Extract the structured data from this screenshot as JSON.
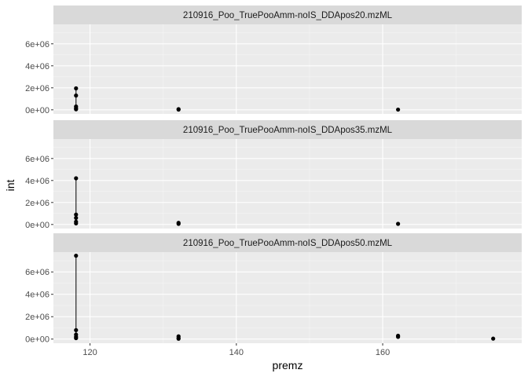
{
  "chart_data": {
    "type": "scatter",
    "xlabel": "premz",
    "ylabel": "int",
    "xlim": [
      115,
      179
    ],
    "ylim": [
      -370000,
      7770000
    ],
    "x_ticks": [
      120,
      140,
      160
    ],
    "x_minor_ticks": [
      130,
      150,
      170
    ],
    "y_ticks": [
      0,
      2000000,
      4000000,
      6000000
    ],
    "y_tick_labels": [
      "0e+00",
      "2e+06",
      "4e+06",
      "6e+06"
    ],
    "y_minor_ticks": [
      1000000,
      3000000,
      5000000,
      7000000
    ],
    "grid": true,
    "facets": [
      {
        "name": "210916_Poo_TruePooAmm-noIS_DDApos20.mzML",
        "points": [
          {
            "x": 118.09,
            "y": 1950000
          },
          {
            "x": 118.09,
            "y": 1300000
          },
          {
            "x": 118.09,
            "y": 300000
          },
          {
            "x": 118.09,
            "y": 150000
          },
          {
            "x": 118.09,
            "y": 50000
          },
          {
            "x": 132.1,
            "y": 60000
          },
          {
            "x": 132.1,
            "y": 20000
          },
          {
            "x": 162.1,
            "y": 20000
          }
        ],
        "segments": [
          {
            "x": 118.09,
            "y0": 50000,
            "y1": 1950000
          }
        ]
      },
      {
        "name": "210916_Poo_TruePooAmm-noIS_DDApos35.mzML",
        "points": [
          {
            "x": 118.09,
            "y": 4200000
          },
          {
            "x": 118.09,
            "y": 900000
          },
          {
            "x": 118.09,
            "y": 600000
          },
          {
            "x": 118.09,
            "y": 250000
          },
          {
            "x": 118.09,
            "y": 100000
          },
          {
            "x": 132.1,
            "y": 150000
          },
          {
            "x": 132.1,
            "y": 60000
          },
          {
            "x": 162.1,
            "y": 60000
          }
        ],
        "segments": [
          {
            "x": 118.09,
            "y0": 100000,
            "y1": 4200000
          }
        ]
      },
      {
        "name": "210916_Poo_TruePooAmm-noIS_DDApos50.mzML",
        "points": [
          {
            "x": 118.09,
            "y": 7450000
          },
          {
            "x": 118.09,
            "y": 800000
          },
          {
            "x": 118.09,
            "y": 400000
          },
          {
            "x": 118.09,
            "y": 200000
          },
          {
            "x": 118.09,
            "y": 80000
          },
          {
            "x": 132.1,
            "y": 250000
          },
          {
            "x": 132.1,
            "y": 100000
          },
          {
            "x": 132.1,
            "y": 30000
          },
          {
            "x": 162.1,
            "y": 300000
          },
          {
            "x": 162.1,
            "y": 200000
          },
          {
            "x": 175.1,
            "y": 40000
          }
        ],
        "segments": [
          {
            "x": 118.09,
            "y0": 80000,
            "y1": 7450000
          },
          {
            "x": 162.1,
            "y0": 200000,
            "y1": 300000
          }
        ]
      }
    ],
    "colors": {
      "panel_background": "#ebebeb",
      "strip_background": "#d9d9d9",
      "grid_major": "#ffffff",
      "point": "#000000"
    }
  }
}
